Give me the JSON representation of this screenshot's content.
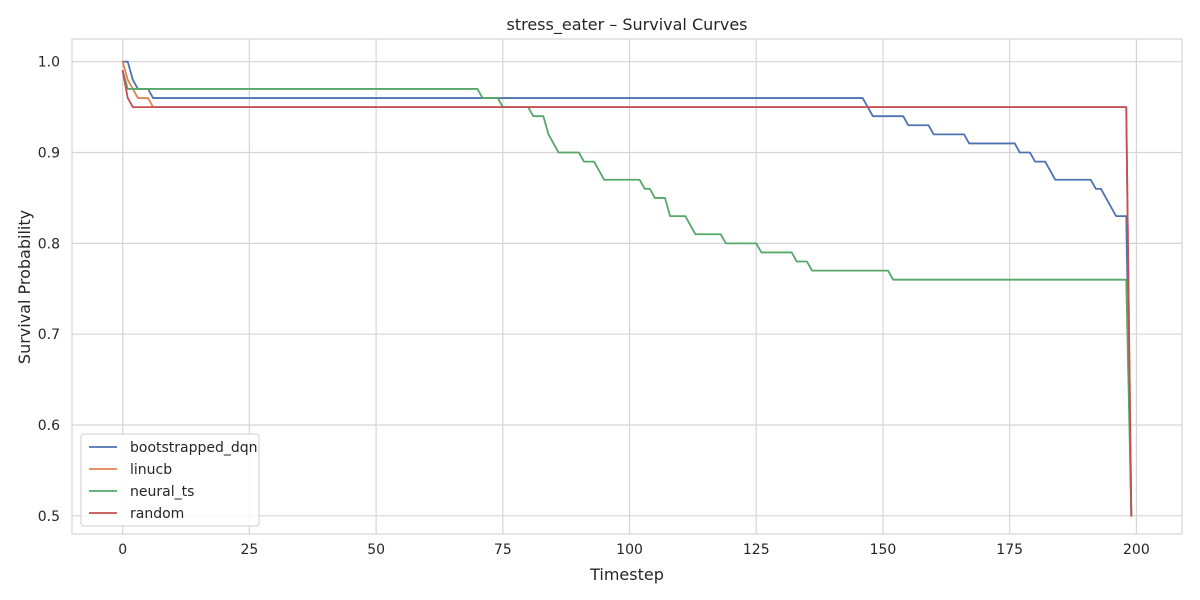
{
  "chart_data": {
    "type": "line",
    "title": "stress_eater – Survival Curves",
    "xlabel": "Timestep",
    "ylabel": "Survival Probability",
    "xlim": [
      -10,
      209
    ],
    "ylim": [
      0.48,
      1.025
    ],
    "xticks": [
      0,
      25,
      50,
      75,
      100,
      125,
      150,
      175,
      200
    ],
    "yticks": [
      0.5,
      0.6,
      0.7,
      0.8,
      0.9,
      1.0
    ],
    "ytick_labels": [
      "0.5",
      "0.6",
      "0.7",
      "0.8",
      "0.9",
      "1.0"
    ],
    "grid": true,
    "legend_position": "bottom-left",
    "series": [
      {
        "name": "bootstrapped_dqn",
        "color": "#4c72b0",
        "x": [
          0,
          1,
          2,
          3,
          4,
          5,
          6,
          146,
          147,
          148,
          149,
          150,
          151,
          152,
          153,
          154,
          155,
          156,
          157,
          158,
          159,
          160,
          166,
          167,
          175,
          176,
          177,
          178,
          179,
          180,
          181,
          182,
          183,
          184,
          190,
          191,
          192,
          193,
          194,
          195,
          196,
          197,
          198,
          199
        ],
        "y": [
          1.0,
          1.0,
          0.98,
          0.97,
          0.97,
          0.97,
          0.96,
          0.96,
          0.95,
          0.94,
          0.94,
          0.94,
          0.94,
          0.94,
          0.94,
          0.94,
          0.93,
          0.93,
          0.93,
          0.93,
          0.93,
          0.92,
          0.92,
          0.91,
          0.91,
          0.91,
          0.9,
          0.9,
          0.9,
          0.89,
          0.89,
          0.89,
          0.88,
          0.87,
          0.87,
          0.87,
          0.86,
          0.86,
          0.85,
          0.84,
          0.83,
          0.83,
          0.83,
          0.5
        ]
      },
      {
        "name": "linucb",
        "color": "#dd8452",
        "x": [
          0,
          1,
          2,
          3,
          4,
          5,
          6,
          198,
          199
        ],
        "y": [
          1.0,
          0.98,
          0.97,
          0.96,
          0.96,
          0.96,
          0.95,
          0.95,
          0.5
        ]
      },
      {
        "name": "neural_ts",
        "color": "#55a868",
        "x": [
          0,
          1,
          70,
          71,
          74,
          75,
          80,
          81,
          82,
          83,
          84,
          85,
          86,
          87,
          90,
          91,
          92,
          93,
          94,
          95,
          96,
          102,
          103,
          104,
          105,
          106,
          107,
          108,
          109,
          111,
          112,
          113,
          114,
          118,
          119,
          120,
          125,
          126,
          132,
          133,
          135,
          136,
          150,
          151,
          152,
          198,
          199
        ],
        "y": [
          0.99,
          0.97,
          0.97,
          0.96,
          0.96,
          0.95,
          0.95,
          0.94,
          0.94,
          0.94,
          0.92,
          0.91,
          0.9,
          0.9,
          0.9,
          0.89,
          0.89,
          0.89,
          0.88,
          0.87,
          0.87,
          0.87,
          0.86,
          0.86,
          0.85,
          0.85,
          0.85,
          0.83,
          0.83,
          0.83,
          0.82,
          0.81,
          0.81,
          0.81,
          0.8,
          0.8,
          0.8,
          0.79,
          0.79,
          0.78,
          0.78,
          0.77,
          0.77,
          0.77,
          0.76,
          0.76,
          0.5
        ]
      },
      {
        "name": "random",
        "color": "#c44e52",
        "x": [
          0,
          1,
          2,
          198,
          199
        ],
        "y": [
          0.99,
          0.96,
          0.95,
          0.95,
          0.5
        ]
      }
    ]
  }
}
